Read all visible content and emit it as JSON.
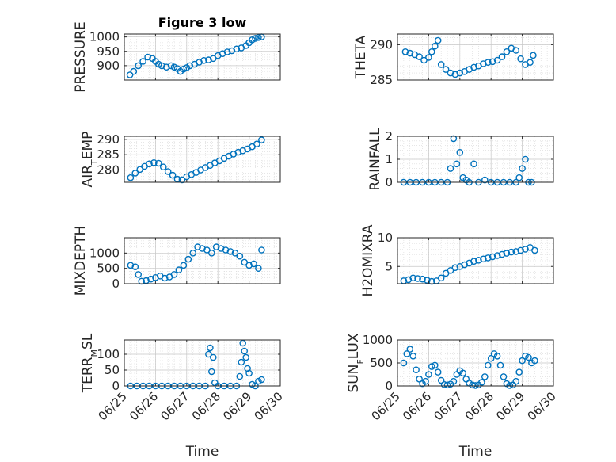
{
  "figure": {
    "title": "Figure 3 low",
    "marker_color": "#0072bd"
  },
  "chart_data": [
    {
      "type": "scatter",
      "title": "Figure 3 low",
      "ylabel": "PRESSURE",
      "ylim": [
        850,
        1010
      ],
      "yticks": [
        900,
        950,
        1000
      ],
      "ytick_labels": [
        "900",
        "950",
        "1000"
      ],
      "xlim": [
        0,
        5
      ],
      "xticks": [
        0,
        1,
        2,
        3,
        4,
        5
      ],
      "xtick_labels": [
        "",
        "",
        "",
        "",
        "",
        ""
      ],
      "grid": true,
      "x": [
        0.18,
        0.3,
        0.45,
        0.6,
        0.75,
        0.9,
        1.0,
        1.1,
        1.2,
        1.35,
        1.5,
        1.6,
        1.7,
        1.8,
        1.9,
        2.0,
        2.1,
        2.25,
        2.4,
        2.55,
        2.7,
        2.85,
        3.0,
        3.15,
        3.3,
        3.45,
        3.6,
        3.75,
        3.9,
        4.0,
        4.1,
        4.2,
        4.3,
        4.4
      ],
      "y": [
        868,
        880,
        900,
        915,
        930,
        925,
        915,
        905,
        900,
        895,
        900,
        895,
        890,
        880,
        888,
        893,
        900,
        905,
        912,
        918,
        920,
        925,
        935,
        942,
        948,
        952,
        958,
        962,
        970,
        980,
        990,
        995,
        998,
        1000
      ]
    },
    {
      "type": "scatter",
      "ylabel": "THETA",
      "ylim": [
        285,
        291.5
      ],
      "yticks": [
        285,
        290
      ],
      "ytick_labels": [
        "285",
        "290"
      ],
      "xlim": [
        0,
        5
      ],
      "xticks": [
        0,
        1,
        2,
        3,
        4,
        5
      ],
      "xtick_labels": [
        "",
        "",
        "",
        "",
        "",
        ""
      ],
      "grid": true,
      "x": [
        0.25,
        0.4,
        0.55,
        0.7,
        0.85,
        1.0,
        1.1,
        1.2,
        1.3,
        1.4,
        1.55,
        1.7,
        1.85,
        2.0,
        2.15,
        2.3,
        2.45,
        2.6,
        2.75,
        2.9,
        3.05,
        3.2,
        3.35,
        3.5,
        3.65,
        3.8,
        3.95,
        4.1,
        4.25,
        4.35
      ],
      "y": [
        289.0,
        288.8,
        288.6,
        288.3,
        287.8,
        288.2,
        289.0,
        289.8,
        290.6,
        287.2,
        286.5,
        286.0,
        285.8,
        286.0,
        286.2,
        286.5,
        286.8,
        287.0,
        287.3,
        287.5,
        287.6,
        287.8,
        288.3,
        289.0,
        289.5,
        289.2,
        288.0,
        287.2,
        287.5,
        288.5
      ]
    },
    {
      "type": "scatter",
      "ylabel": "AIR_TEMP",
      "ylim": [
        276,
        291
      ],
      "yticks": [
        280,
        285,
        290
      ],
      "ytick_labels": [
        "280",
        "285",
        "290"
      ],
      "xlim": [
        0,
        5
      ],
      "xticks": [
        0,
        1,
        2,
        3,
        4,
        5
      ],
      "xtick_labels": [
        "",
        "",
        "",
        "",
        "",
        ""
      ],
      "grid": true,
      "x": [
        0.2,
        0.35,
        0.5,
        0.65,
        0.8,
        0.95,
        1.1,
        1.25,
        1.4,
        1.55,
        1.7,
        1.85,
        2.0,
        2.15,
        2.3,
        2.45,
        2.6,
        2.75,
        2.9,
        3.05,
        3.2,
        3.35,
        3.5,
        3.65,
        3.8,
        3.95,
        4.1,
        4.25,
        4.4
      ],
      "y": [
        277.5,
        279.0,
        280.2,
        281.2,
        282.0,
        282.4,
        282.2,
        281.0,
        279.5,
        278.3,
        277.0,
        276.8,
        277.8,
        278.5,
        279.2,
        280.0,
        280.8,
        281.5,
        282.3,
        283.0,
        283.8,
        284.5,
        285.2,
        285.8,
        286.3,
        286.9,
        287.6,
        288.5,
        289.8
      ]
    },
    {
      "type": "scatter",
      "ylabel": "RAINFALL",
      "ylim": [
        0,
        2
      ],
      "yticks": [
        0,
        1,
        2
      ],
      "ytick_labels": [
        "0",
        "1",
        "2"
      ],
      "xlim": [
        0,
        5
      ],
      "xticks": [
        0,
        1,
        2,
        3,
        4,
        5
      ],
      "xtick_labels": [
        "",
        "",
        "",
        "",
        "",
        ""
      ],
      "grid": true,
      "x": [
        0.2,
        0.4,
        0.6,
        0.8,
        1.0,
        1.2,
        1.4,
        1.6,
        1.7,
        1.8,
        1.9,
        2.0,
        2.1,
        2.2,
        2.3,
        2.45,
        2.6,
        2.8,
        3.0,
        3.2,
        3.4,
        3.6,
        3.8,
        3.9,
        4.0,
        4.1,
        4.2,
        4.3
      ],
      "y": [
        0,
        0,
        0,
        0,
        0,
        0,
        0,
        0,
        0.6,
        1.9,
        0.8,
        1.3,
        0.2,
        0.1,
        0,
        0.8,
        0,
        0.1,
        0,
        0,
        0,
        0,
        0,
        0.2,
        0.6,
        1.0,
        0,
        0
      ]
    },
    {
      "type": "scatter",
      "ylabel": "MIXDEPTH",
      "ylim": [
        0,
        1500
      ],
      "yticks": [
        0,
        500,
        1000
      ],
      "ytick_labels": [
        "0",
        "500",
        "1000"
      ],
      "xlim": [
        0,
        5
      ],
      "xticks": [
        0,
        1,
        2,
        3,
        4,
        5
      ],
      "xtick_labels": [
        "",
        "",
        "",
        "",
        "",
        ""
      ],
      "grid": true,
      "x": [
        0.2,
        0.35,
        0.45,
        0.55,
        0.7,
        0.85,
        1.0,
        1.15,
        1.3,
        1.45,
        1.6,
        1.75,
        1.9,
        2.05,
        2.2,
        2.35,
        2.5,
        2.65,
        2.8,
        2.95,
        3.1,
        3.25,
        3.4,
        3.55,
        3.7,
        3.85,
        4.0,
        4.15,
        4.3,
        4.4
      ],
      "y": [
        600,
        550,
        300,
        80,
        100,
        150,
        200,
        250,
        180,
        220,
        300,
        450,
        600,
        800,
        1000,
        1200,
        1150,
        1100,
        1000,
        1200,
        1150,
        1100,
        1050,
        1000,
        900,
        700,
        600,
        650,
        500,
        1100
      ]
    },
    {
      "type": "scatter",
      "ylabel": "H2OMIXRA",
      "ylim": [
        2,
        10
      ],
      "yticks": [
        5,
        10
      ],
      "ytick_labels": [
        "5",
        "10"
      ],
      "xlim": [
        0,
        5
      ],
      "xticks": [
        0,
        1,
        2,
        3,
        4,
        5
      ],
      "xtick_labels": [
        "",
        "",
        "",
        "",
        "",
        ""
      ],
      "grid": true,
      "x": [
        0.2,
        0.35,
        0.5,
        0.65,
        0.8,
        0.95,
        1.1,
        1.25,
        1.4,
        1.55,
        1.7,
        1.85,
        2.0,
        2.15,
        2.3,
        2.45,
        2.6,
        2.75,
        2.9,
        3.05,
        3.2,
        3.35,
        3.5,
        3.65,
        3.8,
        3.95,
        4.1,
        4.25,
        4.4
      ],
      "y": [
        2.5,
        2.7,
        3.0,
        2.9,
        2.8,
        2.6,
        2.4,
        2.5,
        3.0,
        3.8,
        4.3,
        4.8,
        5.0,
        5.3,
        5.6,
        5.9,
        6.1,
        6.3,
        6.5,
        6.7,
        6.9,
        7.1,
        7.3,
        7.5,
        7.6,
        7.8,
        8.0,
        8.3,
        7.8
      ]
    },
    {
      "type": "scatter",
      "ylabel": "TERR_MSL",
      "ylim": [
        0,
        145
      ],
      "yticks": [
        0,
        50,
        100
      ],
      "ytick_labels": [
        "0",
        "50",
        "100"
      ],
      "xlim": [
        0,
        5
      ],
      "xticks": [
        0,
        1,
        2,
        3,
        4,
        5
      ],
      "xtick_labels": [
        "06/25",
        "06/26",
        "06/27",
        "06/28",
        "06/29",
        "06/30"
      ],
      "xlabel": "Time",
      "grid": true,
      "x": [
        0.2,
        0.4,
        0.6,
        0.8,
        1.0,
        1.2,
        1.4,
        1.6,
        1.8,
        2.0,
        2.2,
        2.4,
        2.6,
        2.7,
        2.75,
        2.8,
        2.85,
        2.9,
        3.0,
        3.2,
        3.4,
        3.6,
        3.7,
        3.75,
        3.8,
        3.85,
        3.9,
        3.95,
        4.0,
        4.1,
        4.2,
        4.3,
        4.4
      ],
      "y": [
        0,
        0,
        0,
        0,
        0,
        0,
        0,
        0,
        0,
        0,
        0,
        0,
        0,
        100,
        120,
        45,
        90,
        10,
        0,
        0,
        0,
        0,
        30,
        75,
        135,
        110,
        90,
        55,
        40,
        5,
        0,
        15,
        20
      ]
    },
    {
      "type": "scatter",
      "ylabel": "SUN_FLUX",
      "ylim": [
        0,
        1000
      ],
      "yticks": [
        0,
        500,
        1000
      ],
      "ytick_labels": [
        "0",
        "500",
        "1000"
      ],
      "xlim": [
        0,
        5
      ],
      "xticks": [
        0,
        1,
        2,
        3,
        4,
        5
      ],
      "xtick_labels": [
        "06/25",
        "06/26",
        "06/27",
        "06/28",
        "06/29",
        "06/30"
      ],
      "xlabel": "Time",
      "grid": true,
      "x": [
        0.2,
        0.3,
        0.4,
        0.5,
        0.6,
        0.7,
        0.8,
        0.9,
        1.0,
        1.1,
        1.2,
        1.3,
        1.4,
        1.5,
        1.6,
        1.7,
        1.8,
        1.9,
        2.0,
        2.1,
        2.2,
        2.3,
        2.4,
        2.5,
        2.6,
        2.7,
        2.8,
        2.9,
        3.0,
        3.1,
        3.2,
        3.3,
        3.4,
        3.5,
        3.6,
        3.7,
        3.8,
        3.9,
        4.0,
        4.1,
        4.2,
        4.3,
        4.4
      ],
      "y": [
        500,
        700,
        800,
        650,
        350,
        150,
        50,
        100,
        250,
        420,
        450,
        300,
        120,
        30,
        20,
        40,
        100,
        250,
        330,
        280,
        150,
        60,
        20,
        10,
        20,
        80,
        200,
        450,
        600,
        700,
        650,
        450,
        200,
        50,
        10,
        20,
        100,
        300,
        550,
        650,
        620,
        500,
        550
      ]
    }
  ]
}
